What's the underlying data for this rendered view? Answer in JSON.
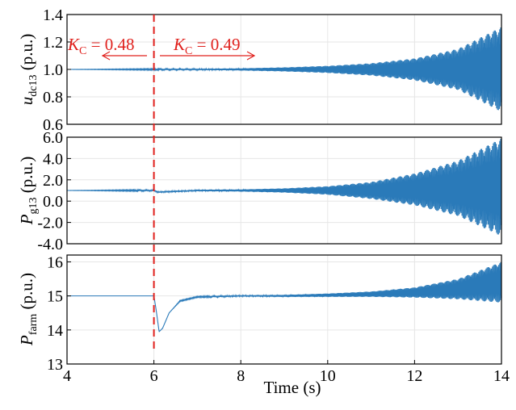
{
  "colors": {
    "series": "#2a7ab9",
    "annotation": "#e0201c",
    "grid": "#e6e6e6",
    "frame": "#000000"
  },
  "chart_data": [
    {
      "type": "line",
      "ylabel": {
        "symbol": "u",
        "subscript": "dc13",
        "unit": " (p.u.)"
      },
      "xlim": [
        4,
        14
      ],
      "ylim": [
        0.6,
        1.4
      ],
      "yticks": [
        "0.6",
        "0.8",
        "1.0",
        "1.2",
        "1.4"
      ],
      "grid": true,
      "series": [
        {
          "description": "oscillation envelope about a center value",
          "x": [
            4,
            6,
            7,
            8,
            9,
            10,
            11,
            12,
            13,
            14
          ],
          "center": [
            1.0,
            1.0,
            1.0,
            1.0,
            1.0,
            1.0,
            1.0,
            1.0,
            1.0,
            1.0
          ],
          "amplitude": [
            0.0,
            0.003,
            0.004,
            0.008,
            0.015,
            0.026,
            0.045,
            0.08,
            0.15,
            0.31
          ]
        }
      ]
    },
    {
      "type": "line",
      "ylabel": {
        "symbol": "P",
        "subscript": "g13",
        "unit": " (p.u.)"
      },
      "xlim": [
        4,
        14
      ],
      "ylim": [
        -4.0,
        6.0
      ],
      "yticks": [
        "-4.0",
        "-2.0",
        "0.0",
        "2.0",
        "4.0",
        "6.0"
      ],
      "grid": true,
      "series": [
        {
          "description": "oscillation envelope about a center value",
          "x": [
            4,
            6,
            6.1,
            7,
            8,
            9,
            10,
            11,
            12,
            13,
            14
          ],
          "center": [
            1.0,
            1.0,
            0.85,
            1.0,
            1.0,
            1.0,
            1.0,
            1.0,
            1.1,
            1.2,
            1.3
          ],
          "amplitude": [
            0.0,
            0.05,
            0.05,
            0.07,
            0.1,
            0.2,
            0.4,
            0.8,
            1.5,
            2.6,
            4.6
          ]
        }
      ]
    },
    {
      "type": "line",
      "ylabel": {
        "symbol": "P",
        "subscript": "farm",
        "unit": " (p.u.)"
      },
      "xlabel": "Time (s)",
      "xlim": [
        4,
        14
      ],
      "ylim": [
        13,
        16.2
      ],
      "yticks": [
        "13",
        "14",
        "15",
        "16"
      ],
      "xticks": [
        "4",
        "6",
        "8",
        "10",
        "12",
        "14"
      ],
      "grid": true,
      "series": [
        {
          "description": "oscillation envelope about a center value",
          "x": [
            4,
            6.0,
            6.05,
            6.12,
            6.2,
            6.35,
            6.6,
            7.0,
            8,
            9,
            10,
            11,
            12,
            13,
            14
          ],
          "center": [
            15.0,
            15.0,
            14.6,
            13.95,
            14.05,
            14.5,
            14.85,
            14.97,
            15.0,
            15.0,
            15.02,
            15.05,
            15.1,
            15.2,
            15.4
          ],
          "amplitude": [
            0.0,
            0.0,
            0.0,
            0.0,
            0.0,
            0.0,
            0.01,
            0.01,
            0.02,
            0.03,
            0.05,
            0.08,
            0.15,
            0.3,
            0.6
          ]
        }
      ]
    }
  ],
  "vline": {
    "x": 6
  },
  "annotations": {
    "left": {
      "sym": "K",
      "sub": "C",
      "value": " = 0.48",
      "arrow": "left"
    },
    "right": {
      "sym": "K",
      "sub": "C",
      "value": " = 0.49",
      "arrow": "right"
    }
  }
}
